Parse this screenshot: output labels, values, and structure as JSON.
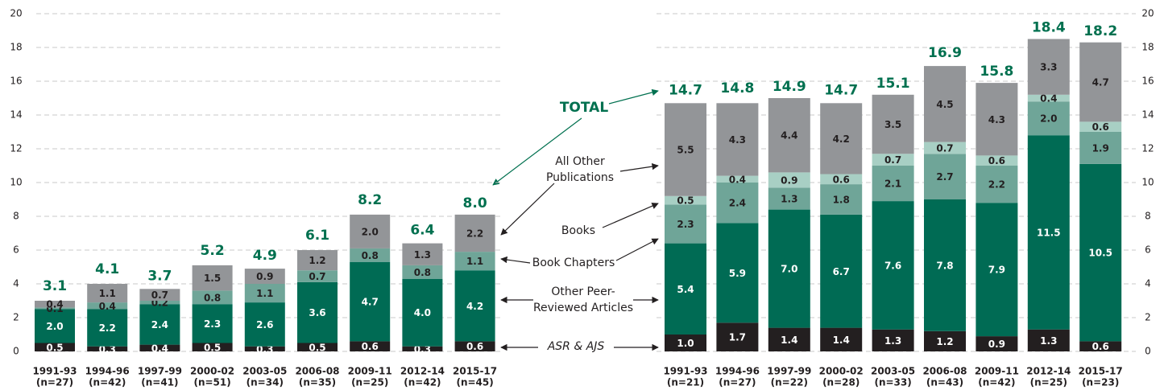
{
  "chart_data": [
    {
      "type": "stacked_bar",
      "categories": [
        "1991-93",
        "1994-96",
        "1997-99",
        "2000-02",
        "2003-05",
        "2006-08",
        "2009-11",
        "2012-14",
        "2015-17"
      ],
      "sample_sizes": [
        "(n=27)",
        "(n=42)",
        "(n=41)",
        "(n=51)",
        "(n=34)",
        "(n=35)",
        "(n=25)",
        "(n=42)",
        "(n=45)"
      ],
      "ylim": [
        0,
        20
      ],
      "yticks": [
        0,
        2,
        4,
        6,
        8,
        10,
        12,
        14,
        16,
        18,
        20
      ],
      "grid": true,
      "y_axis_side": "left",
      "series": [
        {
          "color": "#231f20",
          "values": [
            0.5,
            0.3,
            0.4,
            0.5,
            0.3,
            0.5,
            0.6,
            0.3,
            0.6
          ],
          "value_labels": [
            "0.5",
            "0.3",
            "0.4",
            "0.5",
            "0.3",
            "0.5",
            "0.6",
            "0.3",
            "0.6"
          ]
        },
        {
          "color": "#006b54",
          "values": [
            2.0,
            2.2,
            2.4,
            2.3,
            2.6,
            3.6,
            4.7,
            4.0,
            4.2
          ],
          "value_labels": [
            "2.0",
            "2.2",
            "2.4",
            "2.3",
            "2.6",
            "3.6",
            "4.7",
            "4.0",
            "4.2"
          ]
        },
        {
          "color": "#6fa598",
          "values": [
            0.1,
            0.4,
            0.2,
            0.8,
            1.1,
            0.7,
            0.8,
            0.8,
            1.1
          ],
          "value_labels": [
            "0.1",
            "0.4",
            "0.2",
            "0.8",
            "1.1",
            "0.7",
            "0.8",
            "0.8",
            "1.1"
          ]
        },
        {
          "color": "#939598",
          "values": [
            0.4,
            1.1,
            0.7,
            1.5,
            0.9,
            1.2,
            2.0,
            1.3,
            2.2
          ],
          "value_labels": [
            "0.4",
            "1.1",
            "0.7",
            "1.5",
            "0.9",
            "1.2",
            "2.0",
            "1.3",
            "2.2"
          ]
        }
      ],
      "totals": [
        3.1,
        4.1,
        3.7,
        5.2,
        4.9,
        6.1,
        8.2,
        6.4,
        8.0
      ],
      "total_labels": [
        "3.1",
        "4.1",
        "3.7",
        "5.2",
        "4.9",
        "6.1",
        "8.2",
        "6.4",
        "8.0"
      ],
      "total_color": "#00704f"
    },
    {
      "type": "stacked_bar",
      "categories": [
        "1991-93",
        "1994-96",
        "1997-99",
        "2000-02",
        "2003-05",
        "2006-08",
        "2009-11",
        "2012-14",
        "2015-17"
      ],
      "sample_sizes": [
        "(n=21)",
        "(n=27)",
        "(n=22)",
        "(n=28)",
        "(n=33)",
        "(n=43)",
        "(n=42)",
        "(n=25)",
        "(n=23)"
      ],
      "ylim": [
        0,
        20
      ],
      "yticks": [
        0,
        2,
        4,
        6,
        8,
        10,
        12,
        14,
        16,
        18,
        20
      ],
      "grid": true,
      "y_axis_side": "right",
      "total_label": "TOTAL",
      "series": [
        {
          "name": "ASR & AJS",
          "color": "#231f20",
          "values": [
            1.0,
            1.7,
            1.4,
            1.4,
            1.3,
            1.2,
            0.9,
            1.3,
            0.6
          ],
          "value_labels": [
            "1.0",
            "1.7",
            "1.4",
            "1.4",
            "1.3",
            "1.2",
            "0.9",
            "1.3",
            "0.6"
          ]
        },
        {
          "name": "Other Peer-Reviewed Articles",
          "color": "#006b54",
          "values": [
            5.4,
            5.9,
            7.0,
            6.7,
            7.6,
            7.8,
            7.9,
            11.5,
            10.5
          ],
          "value_labels": [
            "5.4",
            "5.9",
            "7.0",
            "6.7",
            "7.6",
            "7.8",
            "7.9",
            "11.5",
            "10.5"
          ]
        },
        {
          "name": "Book Chapters",
          "color": "#6fa598",
          "values": [
            2.3,
            2.4,
            1.3,
            1.8,
            2.1,
            2.7,
            2.2,
            2.0,
            1.9
          ],
          "value_labels": [
            "2.3",
            "2.4",
            "1.3",
            "1.8",
            "2.1",
            "2.7",
            "2.2",
            "2.0",
            "1.9"
          ]
        },
        {
          "name": "Books",
          "color": "#a8cfc4",
          "values": [
            0.5,
            0.4,
            0.9,
            0.6,
            0.7,
            0.7,
            0.6,
            0.4,
            0.6
          ],
          "value_labels": [
            "0.5",
            "0.4",
            "0.9",
            "0.6",
            "0.7",
            "0.7",
            "0.6",
            "0.4",
            "0.6"
          ]
        },
        {
          "name": "All Other Publications",
          "color": "#939598",
          "values": [
            5.5,
            4.3,
            4.4,
            4.2,
            3.5,
            4.5,
            4.3,
            3.3,
            4.7
          ],
          "value_labels": [
            "5.5",
            "4.3",
            "4.4",
            "4.2",
            "3.5",
            "4.5",
            "4.3",
            "3.3",
            "4.7"
          ]
        }
      ],
      "totals": [
        14.7,
        14.8,
        14.9,
        14.7,
        15.1,
        16.9,
        15.8,
        18.4,
        18.2
      ],
      "total_labels": [
        "14.7",
        "14.8",
        "14.9",
        "14.7",
        "15.1",
        "16.9",
        "15.8",
        "18.4",
        "18.2"
      ],
      "total_color": "#00704f"
    }
  ]
}
